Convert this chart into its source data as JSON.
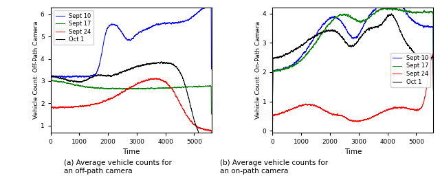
{
  "left_ylabel": "Vehicle Count: Off-Path Camera",
  "right_ylabel": "Vehicle Count: On-Path Camera",
  "xlabel": "Time",
  "caption_left": "(a) Average vehicle counts for\nan off-path camera",
  "caption_right": "(b) Average vehicle counts for\nan on-path camera",
  "labels": [
    "Sept 10",
    "Sept 17",
    "Sept 24",
    "Oct 1"
  ],
  "colors": [
    "blue",
    "green",
    "red",
    "black"
  ],
  "x_max": 5600,
  "left_ylim": [
    0.7,
    6.3
  ],
  "right_ylim": [
    -0.05,
    4.2
  ],
  "left_yticks": [
    1,
    2,
    3,
    4,
    5,
    6
  ],
  "right_yticks": [
    0,
    1,
    2,
    3,
    4
  ],
  "left_xticks": [
    0,
    1000,
    2000,
    3000,
    4000,
    5000
  ],
  "right_xticks": [
    0,
    1000,
    2000,
    3000,
    4000,
    5000
  ],
  "seed": 42
}
